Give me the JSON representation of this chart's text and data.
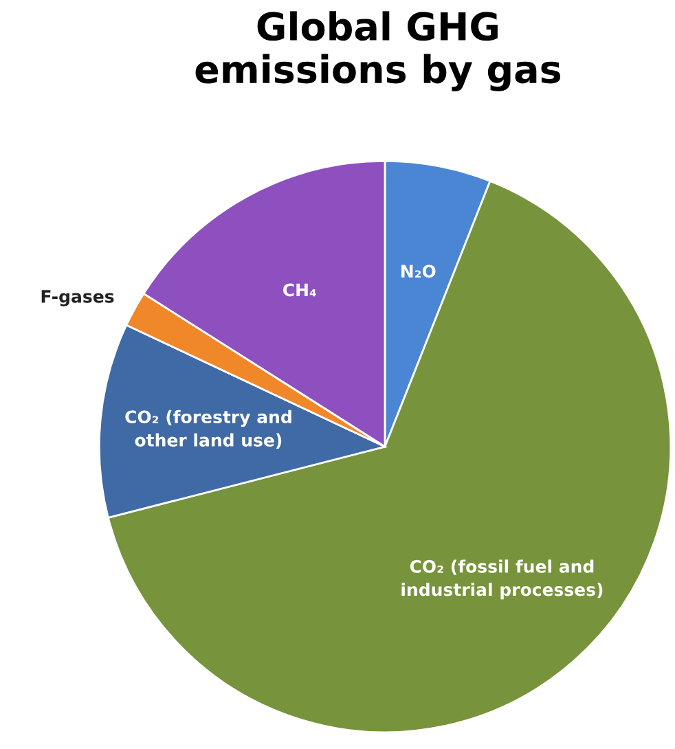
{
  "chart_data": {
    "type": "pie",
    "title": "Global GHG\nemissions by gas",
    "categories": [
      "N₂O",
      "CO₂ (fossil fuel and\nindustrial processes)",
      "CO₂ (forestry and\nother land use)",
      "F-gases",
      "CH₄"
    ],
    "values": [
      6,
      65,
      11,
      2,
      16
    ],
    "colors": [
      "#4a86d4",
      "#77933c",
      "#3f6aa6",
      "#f0882a",
      "#8e4fbf"
    ]
  }
}
